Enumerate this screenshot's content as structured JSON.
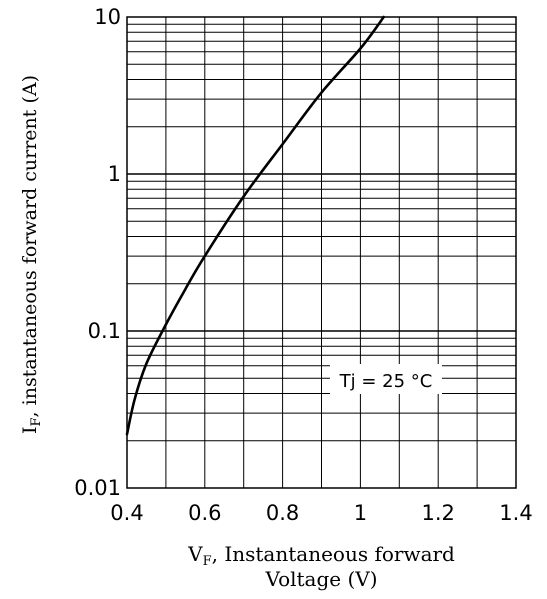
{
  "chart_data": {
    "type": "line",
    "xlabel": {
      "main": "V",
      "sub": "F",
      "rest": ", Instantaneous forward",
      "line2": "Voltage (V)"
    },
    "ylabel": {
      "main": "I",
      "sub": "F",
      "rest": ", instantaneous forward current  (A)"
    },
    "xlim": [
      0.4,
      1.4
    ],
    "ylim": [
      0.01,
      10
    ],
    "y_scale": "log",
    "grid": true,
    "x_ticks": [
      {
        "value": 0.4,
        "label": "0.4"
      },
      {
        "value": 0.6,
        "label": "0.6"
      },
      {
        "value": 0.8,
        "label": "0.8"
      },
      {
        "value": 1.0,
        "label": "1"
      },
      {
        "value": 1.2,
        "label": "1.2"
      },
      {
        "value": 1.4,
        "label": "1.4"
      }
    ],
    "y_ticks": [
      {
        "value": 0.01,
        "label": "0.01"
      },
      {
        "value": 0.1,
        "label": "0.1"
      },
      {
        "value": 1,
        "label": "1"
      },
      {
        "value": 10,
        "label": "10"
      }
    ],
    "annotation": {
      "text": "Tj = 25 °C",
      "position": "lower-right"
    },
    "series": [
      {
        "x": [
          0.4,
          0.42,
          0.45,
          0.5,
          0.55,
          0.6,
          0.7,
          0.8,
          0.9,
          1.0,
          1.06
        ],
        "y": [
          0.022,
          0.037,
          0.062,
          0.11,
          0.185,
          0.3,
          0.72,
          1.55,
          3.3,
          6.3,
          10.0
        ]
      }
    ]
  }
}
